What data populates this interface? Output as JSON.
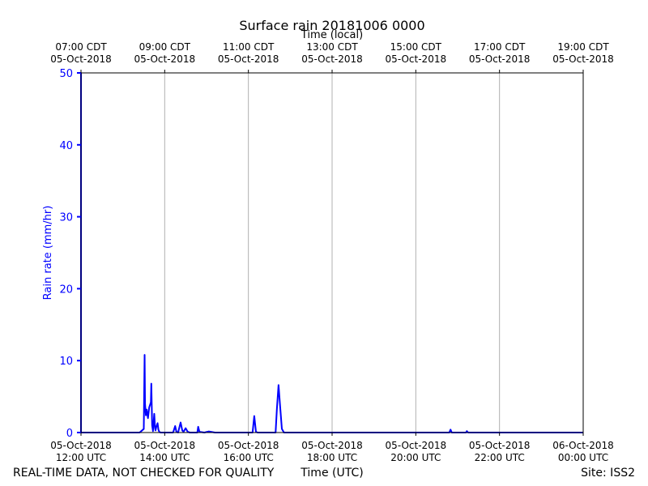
{
  "chart_data": {
    "type": "line",
    "title": "Surface rain 20181006 0000",
    "top_axis_label": "Time (local)",
    "xlabel": "Time (UTC)",
    "ylabel": "Rain rate (mm/hr)",
    "ylim": [
      0,
      50
    ],
    "xlim_hours_utc": [
      12,
      24
    ],
    "y_ticks": [
      {
        "value": 0,
        "label": "0"
      },
      {
        "value": 10,
        "label": "10"
      },
      {
        "value": 20,
        "label": "20"
      },
      {
        "value": 30,
        "label": "30"
      },
      {
        "value": 40,
        "label": "40"
      },
      {
        "value": 50,
        "label": "50"
      }
    ],
    "x_ticks_utc": [
      {
        "hour": 12,
        "line1": "05-Oct-2018",
        "line2": "12:00 UTC"
      },
      {
        "hour": 14,
        "line1": "05-Oct-2018",
        "line2": "14:00 UTC"
      },
      {
        "hour": 16,
        "line1": "05-Oct-2018",
        "line2": "16:00 UTC"
      },
      {
        "hour": 18,
        "line1": "05-Oct-2018",
        "line2": "18:00 UTC"
      },
      {
        "hour": 20,
        "line1": "05-Oct-2018",
        "line2": "20:00 UTC"
      },
      {
        "hour": 22,
        "line1": "05-Oct-2018",
        "line2": "22:00 UTC"
      },
      {
        "hour": 24,
        "line1": "06-Oct-2018",
        "line2": "00:00 UTC"
      }
    ],
    "x_ticks_local": [
      {
        "hour": 12,
        "line1": "07:00 CDT",
        "line2": "05-Oct-2018"
      },
      {
        "hour": 14,
        "line1": "09:00 CDT",
        "line2": "05-Oct-2018"
      },
      {
        "hour": 16,
        "line1": "11:00 CDT",
        "line2": "05-Oct-2018"
      },
      {
        "hour": 18,
        "line1": "13:00 CDT",
        "line2": "05-Oct-2018"
      },
      {
        "hour": 20,
        "line1": "15:00 CDT",
        "line2": "05-Oct-2018"
      },
      {
        "hour": 22,
        "line1": "17:00 CDT",
        "line2": "05-Oct-2018"
      },
      {
        "hour": 24,
        "line1": "19:00 CDT",
        "line2": "05-Oct-2018"
      }
    ],
    "grid": "vertical",
    "colors": {
      "series": "#0000ff",
      "axis_label_left": "#0000ff",
      "grid": "#b0b0b0"
    },
    "series": [
      {
        "x": [
          12.0,
          12.0,
          12.0,
          12.01,
          13.4,
          13.5,
          13.52,
          13.53,
          13.55,
          13.57,
          13.6,
          13.63,
          13.67,
          13.68,
          13.7,
          13.72,
          13.75,
          13.77,
          13.78,
          13.8,
          13.83,
          13.85,
          13.87,
          13.9,
          13.92,
          14.2,
          14.25,
          14.28,
          14.32,
          14.38,
          14.42,
          14.45,
          14.5,
          14.55,
          14.6,
          14.78,
          14.8,
          14.83,
          14.95,
          15.05,
          15.2,
          16.1,
          16.14,
          16.18,
          16.22,
          16.65,
          16.68,
          16.72,
          16.76,
          16.8,
          16.85,
          17.0,
          20.8,
          20.83,
          20.86,
          21.2,
          21.22,
          21.25,
          24.0
        ],
        "y": [
          0,
          50,
          0,
          0,
          0,
          0.5,
          10.8,
          4.0,
          2.4,
          3.2,
          2.0,
          3.5,
          4.2,
          6.8,
          1.0,
          0.2,
          2.6,
          0.6,
          0.3,
          0.8,
          1.3,
          0.4,
          0.1,
          0,
          0,
          0,
          0.9,
          0.1,
          0,
          1.4,
          0.3,
          0.1,
          0.6,
          0.1,
          0,
          0,
          0.8,
          0.1,
          0,
          0.15,
          0,
          0,
          2.3,
          0.1,
          0,
          0,
          3.2,
          6.6,
          3.5,
          0.5,
          0,
          0,
          0,
          0.4,
          0,
          0,
          0.2,
          0,
          0
        ]
      }
    ]
  },
  "footer": {
    "left": "REAL-TIME DATA, NOT CHECKED FOR QUALITY",
    "center": "Time (UTC)",
    "right": "Site: ISS2"
  }
}
